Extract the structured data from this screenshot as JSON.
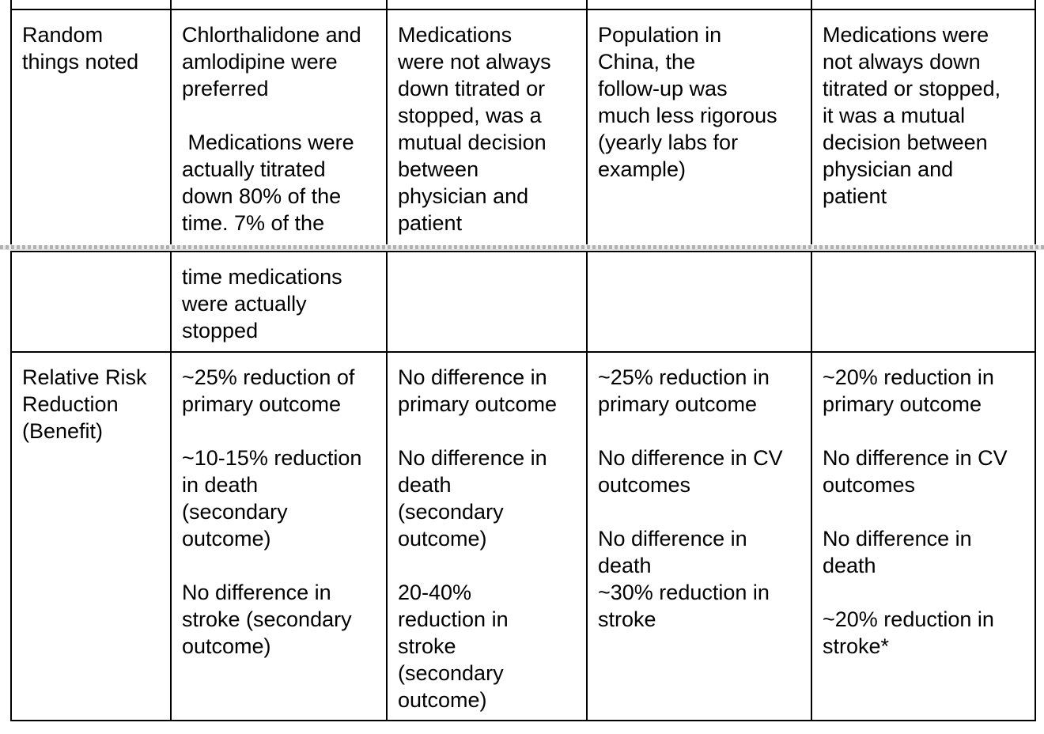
{
  "document": {
    "type": "table-page-break-view",
    "colors": {
      "background": "#ffffff",
      "table_border": "#000000",
      "page_break_dots": "#b0b0b0"
    },
    "table": {
      "section_before_break": {
        "spacer_row": {
          "cells": [
            "",
            "",
            "",
            "",
            ""
          ]
        },
        "rows": [
          {
            "cells": [
              "Random\nthings noted",
              "Chlorthalidone and\namlodipine were\npreferred\n\n Medications were\nactually titrated\ndown 80% of the\ntime. 7% of the",
              "Medications\nwere not always\ndown titrated or\nstopped, was a\nmutual decision\nbetween\nphysician and\npatient",
              "Population in\nChina, the\nfollow-up was\nmuch less rigorous\n(yearly labs for\nexample)",
              "Medications were\nnot always down\ntitrated or stopped,\nit was a mutual\ndecision between\nphysician and\npatient"
            ]
          }
        ]
      },
      "section_after_break": {
        "rows": [
          {
            "cells": [
              "",
              "time medications\nwere actually\nstopped",
              "",
              "",
              ""
            ]
          },
          {
            "cells": [
              "Relative Risk\nReduction\n(Benefit)",
              "~25% reduction of\nprimary outcome\n\n~10-15% reduction\nin death\n(secondary\noutcome)\n\nNo difference in\nstroke (secondary\noutcome)",
              "No difference in\nprimary outcome\n\nNo difference in\ndeath\n(secondary\noutcome)\n\n20-40%\nreduction in\nstroke\n(secondary\noutcome)",
              "~25% reduction in\nprimary outcome\n\nNo difference in CV\noutcomes\n\nNo difference in\ndeath\n~30% reduction in\nstroke",
              "~20% reduction in\nprimary outcome\n\nNo difference in CV\noutcomes\n\nNo difference in\ndeath\n\n~20% reduction in\nstroke*"
            ]
          }
        ]
      }
    }
  }
}
